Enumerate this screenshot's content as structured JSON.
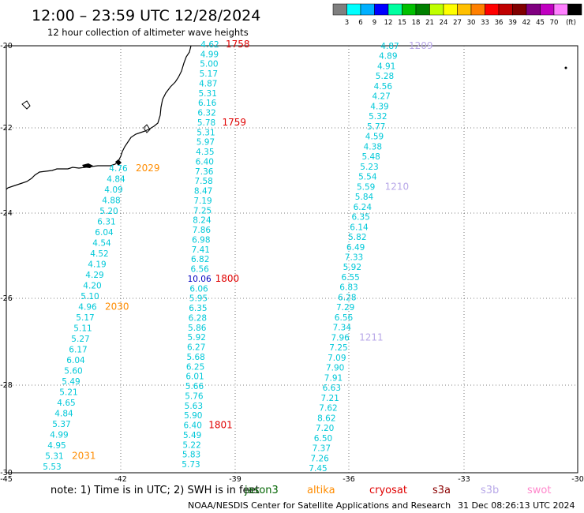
{
  "header": {
    "title": "12:00 – 23:59 UTC 12/28/2024",
    "subtitle": "12 hour collection of altimeter wave heights"
  },
  "colorbar": {
    "labels": [
      "3",
      "6",
      "9",
      "12",
      "15",
      "18",
      "21",
      "24",
      "27",
      "30",
      "33",
      "36",
      "39",
      "42",
      "45",
      "70"
    ],
    "unit": "(ft)",
    "colors": [
      "#7f7f7f",
      "#00ffff",
      "#00b0ff",
      "#0000ff",
      "#00ffa0",
      "#00c000",
      "#008000",
      "#c0ff00",
      "#ffff00",
      "#ffc000",
      "#ff8000",
      "#ff0000",
      "#c00000",
      "#800000",
      "#800080",
      "#c000c0",
      "#ff80ff",
      "#000000"
    ]
  },
  "map": {
    "lat_ticks": [
      "-20",
      "-22",
      "-24",
      "-26",
      "-28",
      "-30"
    ],
    "lon_ticks": [
      "-45",
      "-42",
      "-39",
      "-36",
      "-33",
      "-30"
    ],
    "land_color": "#000000",
    "grid_color": "#555555"
  },
  "satellite_colors": {
    "jason3": "#006400",
    "altika": "#ff8c00",
    "cryosat": "#e00000",
    "s3a": "#8b0000",
    "s3b": "#b8a8e8",
    "swot": "#ff88cc"
  },
  "tracks": [
    {
      "satellite": "cryosat",
      "color": "#00c8d8",
      "values": [
        "4.62",
        "4.99",
        "5.00",
        "5.17",
        "4.87",
        "5.31",
        "6.16",
        "6.32",
        "5.78",
        "5.31",
        "5.97",
        "4.35",
        "6.40",
        "7.36",
        "7.58",
        "8.47",
        "7.19",
        "7.25",
        "8.24",
        "7.86",
        "6.98",
        "7.41",
        "6.82",
        "6.56",
        "10.06",
        "6.06",
        "5.95",
        "6.35",
        "6.28",
        "5.86",
        "5.92",
        "6.27",
        "5.68",
        "6.25",
        "6.01",
        "5.66",
        "5.76",
        "5.63",
        "5.90",
        "6.40",
        "5.49",
        "5.22",
        "5.83",
        "5.73"
      ],
      "highlight_index": 24,
      "highlight_color": "#0000c0",
      "times": [
        {
          "label": "1758",
          "index": 0
        },
        {
          "label": "1759",
          "index": 8
        },
        {
          "label": "1800",
          "index": 24
        },
        {
          "label": "1801",
          "index": 39
        }
      ]
    },
    {
      "satellite": "altika",
      "color": "#00c8d8",
      "values": [
        "4.76",
        "4.84",
        "4.09",
        "4.88",
        "5.20",
        "6.31",
        "6.04",
        "4.54",
        "4.52",
        "4.19",
        "4.29",
        "4.20",
        "5.10",
        "4.96",
        "5.17",
        "5.11",
        "5.27",
        "6.17",
        "6.04",
        "5.60",
        "5.49",
        "5.21",
        "4.65",
        "4.84",
        "5.37",
        "4.99",
        "4.95",
        "5.31",
        "5.53"
      ],
      "times": [
        {
          "label": "2029",
          "index": 0
        },
        {
          "label": "2030",
          "index": 13
        },
        {
          "label": "2031",
          "index": 27
        }
      ]
    },
    {
      "satellite": "s3b",
      "color": "#00c8d8",
      "values": [
        "4.87",
        "4.89",
        "4.91",
        "5.28",
        "4.56",
        "4.27",
        "4.39",
        "5.32",
        "5.77",
        "4.59",
        "4.38",
        "5.48",
        "5.23",
        "5.54",
        "5.59",
        "5.84",
        "6.24",
        "6.35",
        "6.14",
        "5.82",
        "6.49",
        "7.33",
        "5.92",
        "6.55",
        "6.83",
        "6.28",
        "7.29",
        "6.56",
        "7.34",
        "7.96",
        "7.25",
        "7.09",
        "7.90",
        "7.91",
        "6.63",
        "7.21",
        "7.62",
        "8.62",
        "7.20",
        "6.50",
        "7.37",
        "7.26",
        "7.45"
      ],
      "times": [
        {
          "label": "1209",
          "index": 0
        },
        {
          "label": "1210",
          "index": 14
        },
        {
          "label": "1211",
          "index": 29
        }
      ]
    }
  ],
  "legend": {
    "note": "note:  1) Time is in UTC;  2) SWH is in feet",
    "satellites": [
      {
        "name": "jason3",
        "label": "jason3"
      },
      {
        "name": "altika",
        "label": "altika"
      },
      {
        "name": "cryosat",
        "label": "cryosat"
      },
      {
        "name": "s3a",
        "label": "s3a"
      },
      {
        "name": "s3b",
        "label": "s3b"
      },
      {
        "name": "swot",
        "label": "swot"
      }
    ]
  },
  "footer": {
    "credit": "NOAA/NESDIS Center for Satellite Applications and Research",
    "timestamp": "31 Dec 08:26:13 UTC 2024"
  }
}
